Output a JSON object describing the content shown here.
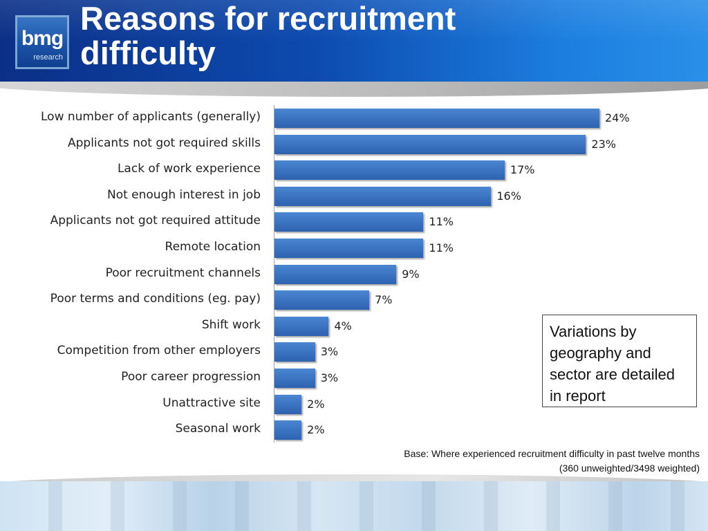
{
  "header": {
    "logo_main": "bmg",
    "logo_sub": "research",
    "title_line1": "Reasons for recruitment",
    "title_line2": "difficulty"
  },
  "chart_data": {
    "type": "bar",
    "orientation": "horizontal",
    "categories": [
      "Low number of applicants (generally)",
      "Applicants not got required skills",
      "Lack of work experience",
      "Not enough interest in job",
      "Applicants not got required attitude",
      "Remote location",
      "Poor recruitment channels",
      "Poor terms and conditions (eg. pay)",
      "Shift work",
      "Competition from other employers",
      "Poor career progression",
      "Unattractive site",
      "Seasonal work"
    ],
    "values": [
      24,
      23,
      17,
      16,
      11,
      11,
      9,
      7,
      4,
      3,
      3,
      2,
      2
    ],
    "value_labels": [
      "24%",
      "23%",
      "17%",
      "16%",
      "11%",
      "11%",
      "9%",
      "7%",
      "4%",
      "3%",
      "3%",
      "2%",
      "2%"
    ],
    "unit": "%",
    "xlim": [
      0,
      24
    ],
    "grid": false,
    "bar_color": "#3b74c4"
  },
  "note": {
    "text": "Variations by geography and sector are detailed in report"
  },
  "base": {
    "line1": "Base: Where experienced recruitment difficulty in past twelve months",
    "line2": "(360 unweighted/3498 weighted)"
  }
}
